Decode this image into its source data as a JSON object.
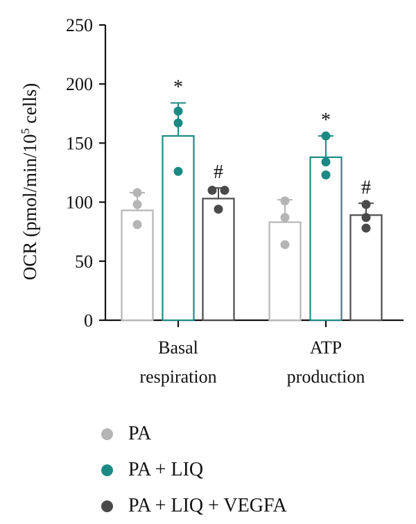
{
  "chart_data": {
    "type": "bar",
    "ylabel_main": "OCR (pmol/min/10",
    "ylabel_sup": "5",
    "ylabel_tail": " cells)",
    "ylim": [
      0,
      250
    ],
    "yticks": [
      0,
      50,
      100,
      150,
      200,
      250
    ],
    "categories": [
      {
        "line1": "Basal",
        "line2": "respiration"
      },
      {
        "line1": "ATP",
        "line2": "production"
      }
    ],
    "series": [
      {
        "name": "PA",
        "color": "#b5b5b5",
        "values": [
          93,
          83
        ],
        "errors": [
          15,
          19
        ],
        "points": [
          [
            108,
            98,
            81
          ],
          [
            101,
            87,
            64
          ]
        ],
        "marks": [
          "",
          ""
        ]
      },
      {
        "name": "PA + LIQ",
        "color": "#1c8a84",
        "values": [
          156,
          138
        ],
        "errors": [
          28,
          18
        ],
        "points": [
          [
            177,
            167,
            126
          ],
          [
            156,
            134,
            123
          ]
        ],
        "marks": [
          "*",
          "*"
        ]
      },
      {
        "name": "PA + LIQ + VEGFA",
        "color": "#4a4a4a",
        "values": [
          103,
          89
        ],
        "errors": [
          9,
          10
        ],
        "points": [
          [
            110,
            110,
            94
          ],
          [
            98,
            87,
            78
          ]
        ],
        "marks": [
          "#",
          "#"
        ]
      }
    ],
    "legend_position": "bottom-left",
    "grid": false
  }
}
